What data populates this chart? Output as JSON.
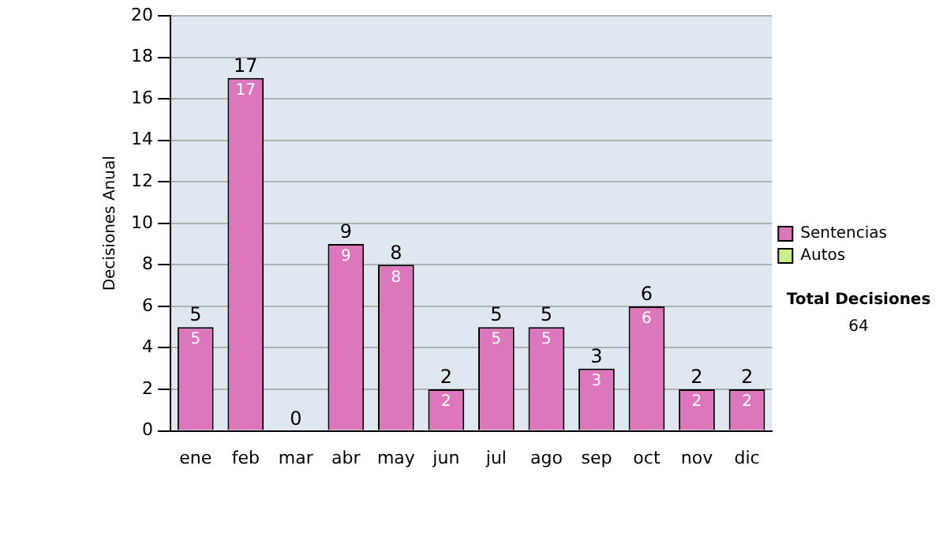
{
  "chart_data": {
    "type": "bar",
    "stacked": true,
    "ylabel": "Decisiones Anual",
    "categories": [
      "ene",
      "feb",
      "mar",
      "abr",
      "may",
      "jun",
      "jul",
      "ago",
      "sep",
      "oct",
      "nov",
      "dic"
    ],
    "series": [
      {
        "name": "Sentencias",
        "color": "#dd77bb",
        "values": [
          5,
          17,
          0,
          9,
          8,
          2,
          5,
          5,
          3,
          6,
          2,
          2
        ],
        "value_labels": [
          "5",
          "17",
          null,
          "9",
          "8",
          "2",
          "5",
          "5",
          "3",
          "6",
          "2",
          "2"
        ]
      },
      {
        "name": "Autos",
        "color": "#ccee88",
        "values": [
          0,
          0,
          0,
          0,
          0,
          0,
          0,
          0,
          0,
          0,
          0,
          0
        ]
      }
    ],
    "totals": [
      "5",
      "17",
      "0",
      "9",
      "8",
      "2",
      "5",
      "5",
      "3",
      "6",
      "2",
      "2"
    ],
    "ylim": [
      0,
      20
    ],
    "yticks": [
      0,
      2,
      4,
      6,
      8,
      10,
      12,
      14,
      16,
      18,
      20
    ],
    "grid": "y",
    "legend": "right",
    "annotations": [
      "Total Decisiones",
      "64"
    ]
  }
}
